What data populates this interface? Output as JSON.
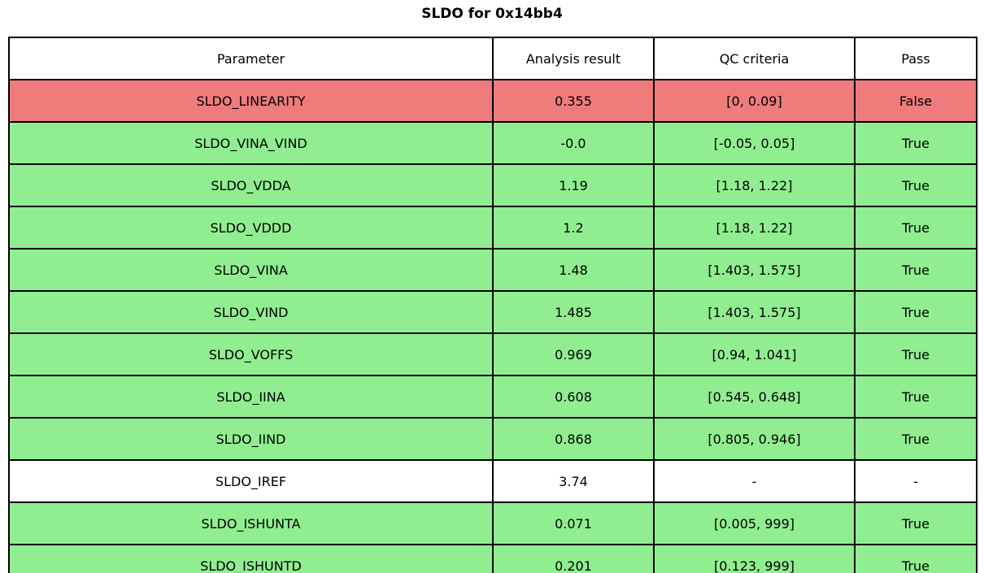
{
  "title": "SLDO for 0x14bb4",
  "chart_data": {
    "type": "table",
    "title": "SLDO for 0x14bb4",
    "columns": [
      "Parameter",
      "Analysis result",
      "QC criteria",
      "Pass"
    ],
    "rows": [
      {
        "parameter": "SLDO_LINEARITY",
        "result": "0.355",
        "criteria": "[0, 0.09]",
        "pass": "False",
        "status": "fail"
      },
      {
        "parameter": "SLDO_VINA_VIND",
        "result": "-0.0",
        "criteria": "[-0.05, 0.05]",
        "pass": "True",
        "status": "pass"
      },
      {
        "parameter": "SLDO_VDDA",
        "result": "1.19",
        "criteria": "[1.18, 1.22]",
        "pass": "True",
        "status": "pass"
      },
      {
        "parameter": "SLDO_VDDD",
        "result": "1.2",
        "criteria": "[1.18, 1.22]",
        "pass": "True",
        "status": "pass"
      },
      {
        "parameter": "SLDO_VINA",
        "result": "1.48",
        "criteria": "[1.403, 1.575]",
        "pass": "True",
        "status": "pass"
      },
      {
        "parameter": "SLDO_VIND",
        "result": "1.485",
        "criteria": "[1.403, 1.575]",
        "pass": "True",
        "status": "pass"
      },
      {
        "parameter": "SLDO_VOFFS",
        "result": "0.969",
        "criteria": "[0.94, 1.041]",
        "pass": "True",
        "status": "pass"
      },
      {
        "parameter": "SLDO_IINA",
        "result": "0.608",
        "criteria": "[0.545, 0.648]",
        "pass": "True",
        "status": "pass"
      },
      {
        "parameter": "SLDO_IIND",
        "result": "0.868",
        "criteria": "[0.805, 0.946]",
        "pass": "True",
        "status": "pass"
      },
      {
        "parameter": "SLDO_IREF",
        "result": "3.74",
        "criteria": "-",
        "pass": "-",
        "status": "neutral"
      },
      {
        "parameter": "SLDO_ISHUNTA",
        "result": "0.071",
        "criteria": "[0.005, 999]",
        "pass": "True",
        "status": "pass"
      },
      {
        "parameter": "SLDO_ISHUNTD",
        "result": "0.201",
        "criteria": "[0.123, 999]",
        "pass": "True",
        "status": "pass"
      }
    ],
    "row_colors": {
      "pass": "#90ee90",
      "fail": "#ee7c7c",
      "neutral": "#ffffff"
    },
    "layout": {
      "legend": "none",
      "grid": "full-borders",
      "border_color": "#000000"
    }
  }
}
